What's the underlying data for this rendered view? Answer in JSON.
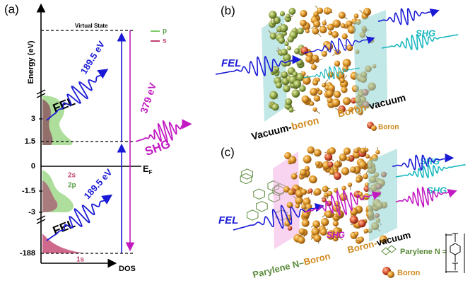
{
  "panel_a": {
    "label": "(a)",
    "y_axis_label": "Energy (eV)",
    "x_axis_label": "DOS",
    "ticks": [
      "3",
      "1.5",
      "0",
      "-1.5",
      "-3",
      "-188"
    ],
    "virtual_state": "Virtual State",
    "legend": [
      "p",
      "s"
    ],
    "fermi": {
      "main": "E",
      "sub": "F"
    },
    "orbitals": [
      "2s",
      "2p",
      "1s"
    ],
    "upper_beam": {
      "name": "FEL",
      "energy": "189.5 eV"
    },
    "lower_beam": {
      "name": "FEL",
      "energy": "189.5 eV"
    },
    "shg": {
      "name": "SHG",
      "energy": "379 eV"
    }
  },
  "panel_b": {
    "label": "(b)",
    "input": "FEL",
    "output": "SHG",
    "left_interface": [
      "Vacuum-",
      "boron"
    ],
    "right_interface": [
      "Boron-",
      "vacuum"
    ],
    "legend": "Boron"
  },
  "panel_c": {
    "label": "(c)",
    "input": "FEL",
    "outputs": [
      "SHG",
      "SHG",
      "SHG"
    ],
    "left_interface": [
      "Parylene N–",
      "Boron"
    ],
    "right_interface": [
      "Boron-",
      "vacuum"
    ],
    "legend": [
      "Parylene N =",
      "Boron"
    ]
  }
}
